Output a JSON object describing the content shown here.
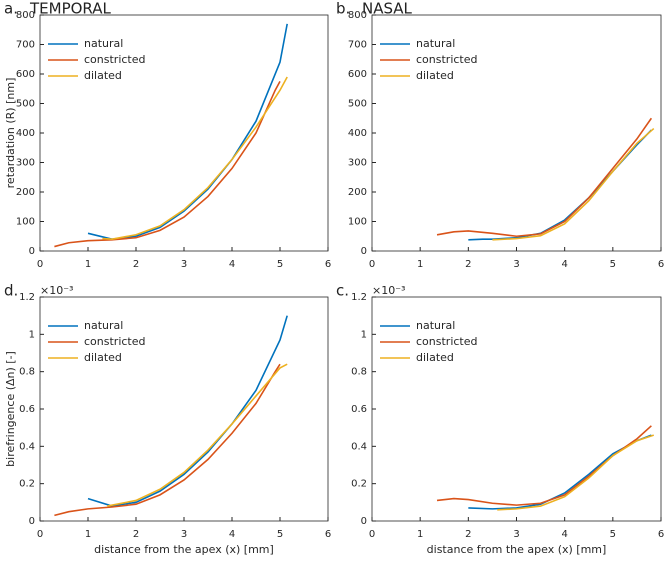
{
  "chart_data": [
    {
      "type": "line",
      "label": "a.",
      "title": "TEMPORAL",
      "ylabel": "retardation (R) [nm]",
      "xlim": [
        0,
        6
      ],
      "xticks": [
        0,
        1,
        2,
        3,
        4,
        5,
        6
      ],
      "ylim": [
        0,
        800
      ],
      "yticks": [
        0,
        100,
        200,
        300,
        400,
        500,
        600,
        700,
        800
      ],
      "legend": "upper left",
      "series": [
        {
          "name": "natural",
          "color": "#0072bd",
          "x": [
            1.0,
            1.5,
            2,
            2.5,
            3,
            3.5,
            4,
            4.5,
            5,
            5.15
          ],
          "values": [
            60,
            40,
            50,
            80,
            135,
            210,
            310,
            440,
            640,
            770
          ]
        },
        {
          "name": "constricted",
          "color": "#d95319",
          "x": [
            0.3,
            0.6,
            1,
            1.5,
            2,
            2.5,
            3,
            3.5,
            4,
            4.5,
            4.9,
            5.0
          ],
          "values": [
            15,
            28,
            35,
            38,
            45,
            70,
            115,
            185,
            280,
            400,
            545,
            575
          ]
        },
        {
          "name": "dilated",
          "color": "#edb120",
          "x": [
            1.3,
            1.5,
            2,
            2.5,
            3,
            3.5,
            4,
            4.5,
            5,
            5.15
          ],
          "values": [
            42,
            40,
            55,
            85,
            140,
            215,
            310,
            420,
            545,
            590
          ]
        }
      ]
    },
    {
      "type": "line",
      "label": "b.",
      "title": "NASAL",
      "xlim": [
        0,
        6
      ],
      "xticks": [
        0,
        1,
        2,
        3,
        4,
        5,
        6
      ],
      "ylim": [
        0,
        800
      ],
      "yticks": [
        0,
        100,
        200,
        300,
        400,
        500,
        600,
        700,
        800
      ],
      "legend": "upper left",
      "series": [
        {
          "name": "natural",
          "color": "#0072bd",
          "x": [
            2.0,
            2.3,
            2.5,
            3,
            3.5,
            4,
            4.5,
            5,
            5.5,
            5.8
          ],
          "values": [
            38,
            40,
            40,
            45,
            60,
            105,
            180,
            270,
            360,
            410
          ]
        },
        {
          "name": "constricted",
          "color": "#d95319",
          "x": [
            1.35,
            1.7,
            2,
            2.5,
            3,
            3.5,
            4,
            4.5,
            5,
            5.5,
            5.8
          ],
          "values": [
            55,
            65,
            68,
            60,
            50,
            58,
            100,
            180,
            280,
            380,
            450
          ]
        },
        {
          "name": "dilated",
          "color": "#edb120",
          "x": [
            2.5,
            3,
            3.5,
            4,
            4.5,
            5,
            5.5,
            5.85
          ],
          "values": [
            38,
            42,
            52,
            92,
            170,
            270,
            365,
            415
          ]
        }
      ]
    },
    {
      "type": "line",
      "label": "d.",
      "ylabel": "birefringence (Δn) [-]",
      "xlabel": "distance from the apex (x) [mm]",
      "y_exponent": "×10⁻³",
      "xlim": [
        0,
        6
      ],
      "xticks": [
        0,
        1,
        2,
        3,
        4,
        5,
        6
      ],
      "ylim": [
        0,
        1.2
      ],
      "yticks": [
        0,
        0.2,
        0.4,
        0.6,
        0.8,
        1,
        1.2
      ],
      "legend": "upper left",
      "series": [
        {
          "name": "natural",
          "color": "#0072bd",
          "x": [
            1.0,
            1.5,
            2,
            2.5,
            3,
            3.5,
            4,
            4.5,
            5,
            5.15
          ],
          "values": [
            0.12,
            0.08,
            0.1,
            0.16,
            0.25,
            0.37,
            0.52,
            0.7,
            0.97,
            1.1
          ]
        },
        {
          "name": "constricted",
          "color": "#d95319",
          "x": [
            0.3,
            0.6,
            1,
            1.5,
            2,
            2.5,
            3,
            3.5,
            4,
            4.5,
            4.9,
            5.0
          ],
          "values": [
            0.03,
            0.05,
            0.065,
            0.075,
            0.09,
            0.14,
            0.22,
            0.33,
            0.47,
            0.63,
            0.8,
            0.84
          ]
        },
        {
          "name": "dilated",
          "color": "#edb120",
          "x": [
            1.4,
            2,
            2.5,
            3,
            3.5,
            4,
            4.5,
            5,
            5.15
          ],
          "values": [
            0.08,
            0.11,
            0.17,
            0.26,
            0.38,
            0.52,
            0.67,
            0.82,
            0.84
          ]
        }
      ]
    },
    {
      "type": "line",
      "label": "c.",
      "xlabel": "distance from the apex (x) [mm]",
      "y_exponent": "×10⁻³",
      "xlim": [
        0,
        6
      ],
      "xticks": [
        0,
        1,
        2,
        3,
        4,
        5,
        6
      ],
      "ylim": [
        0,
        1.2
      ],
      "yticks": [
        0,
        0.2,
        0.4,
        0.6,
        0.8,
        1,
        1.2
      ],
      "legend": "upper left",
      "series": [
        {
          "name": "natural",
          "color": "#0072bd",
          "x": [
            2,
            2.5,
            3,
            3.5,
            4,
            4.5,
            5,
            5.5,
            5.8
          ],
          "values": [
            0.07,
            0.065,
            0.07,
            0.09,
            0.15,
            0.25,
            0.36,
            0.43,
            0.46
          ]
        },
        {
          "name": "constricted",
          "color": "#d95319",
          "x": [
            1.35,
            1.7,
            2,
            2.5,
            3,
            3.5,
            4,
            4.5,
            5,
            5.5,
            5.8
          ],
          "values": [
            0.11,
            0.12,
            0.115,
            0.095,
            0.085,
            0.095,
            0.14,
            0.24,
            0.35,
            0.44,
            0.51
          ]
        },
        {
          "name": "dilated",
          "color": "#edb120",
          "x": [
            2.6,
            3,
            3.5,
            4,
            4.5,
            5,
            5.5,
            5.85
          ],
          "values": [
            0.06,
            0.065,
            0.08,
            0.13,
            0.23,
            0.35,
            0.43,
            0.46
          ]
        }
      ]
    }
  ]
}
